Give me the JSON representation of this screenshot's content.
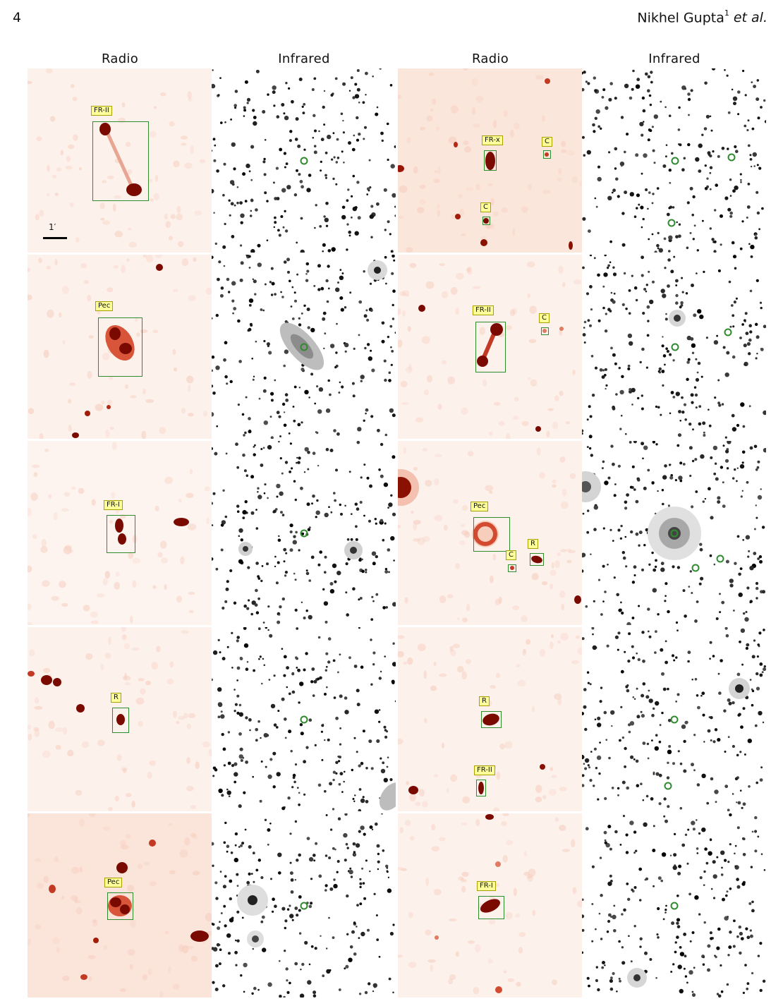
{
  "header": {
    "page_number": "4",
    "author": "Nikhel Gupta",
    "author_sup": "1",
    "etal": "et al."
  },
  "columns": [
    "Radio",
    "Infrared",
    "Radio",
    "Infrared"
  ],
  "scale_label": "1′",
  "colors": {
    "radio_bg": "#fdf1ec",
    "radio_src": "#7a0a00",
    "marker": "#2e8b2e",
    "label_bg": "#ffff99"
  },
  "labels": {
    "r1l_a": "FR-II",
    "r1r_a": "FR-x",
    "r1r_b": "C",
    "r1r_c": "C",
    "r2l_a": "Pec",
    "r2r_a": "FR-II",
    "r2r_b": "C",
    "r3l_a": "FR-I",
    "r3r_a": "Pec",
    "r3r_b": "C",
    "r3r_c": "R",
    "r4l_a": "R",
    "r4r_a": "R",
    "r4r_b": "FR-II",
    "r5l_a": "Pec",
    "r5r_a": "FR-I"
  }
}
